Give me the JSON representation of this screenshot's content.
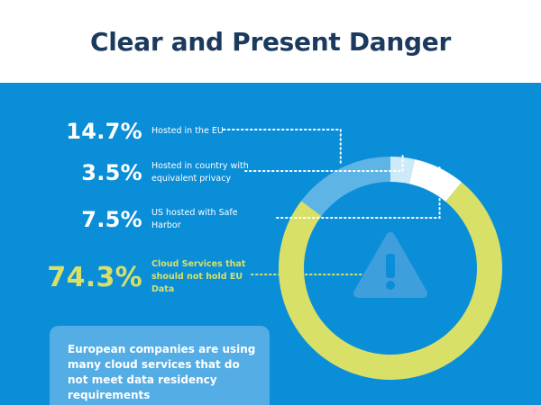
{
  "header": {
    "title": "Clear and Present Danger"
  },
  "chart_data": {
    "type": "pie",
    "categories": [
      "Hosted in the EU",
      "Hosted in country with equivalent privacy",
      "US hosted with Safe Harbor",
      "Cloud Services that should not hold EU Data"
    ],
    "values": [
      14.7,
      3.5,
      7.5,
      74.3
    ],
    "labels": [
      "14.7%",
      "3.5%",
      "7.5%",
      "74.3%"
    ],
    "colors": [
      "#5fb4e6",
      "#cdeaf8",
      "#ffffff",
      "#d8e067"
    ]
  },
  "center_icon": {
    "name": "warning-triangle-icon",
    "color": "#3f9fdd"
  },
  "callout": {
    "text": "European companies are using many cloud services that do not meet data residency requirements"
  }
}
